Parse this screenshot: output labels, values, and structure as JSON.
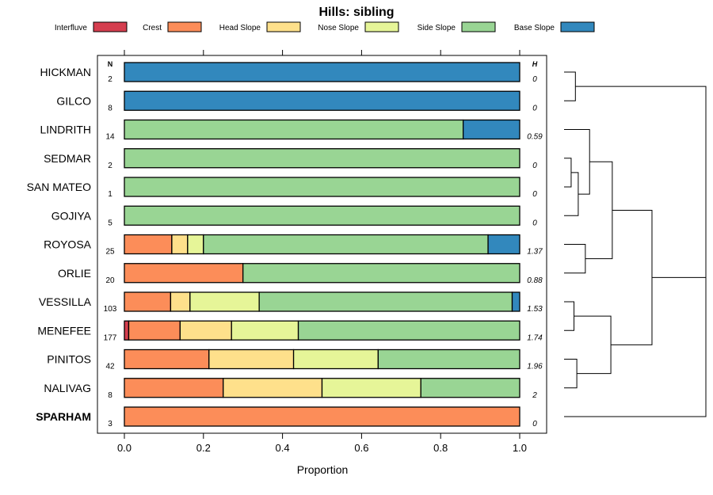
{
  "chart_data": {
    "type": "bar",
    "stacked": true,
    "orientation": "horizontal",
    "title": "Hills: sibling",
    "xlabel": "Proportion",
    "ylabel": "",
    "xlim": [
      0,
      1
    ],
    "x_ticks": [
      "0.0",
      "0.2",
      "0.4",
      "0.6",
      "0.8",
      "1.0"
    ],
    "x_tick_values": [
      0,
      0.2,
      0.4,
      0.6,
      0.8,
      1.0
    ],
    "n_column_header": "N",
    "h_column_header": "H",
    "legend": [
      {
        "name": "Interfluve",
        "color": "#d53e4f"
      },
      {
        "name": "Crest",
        "color": "#fc8d59"
      },
      {
        "name": "Head Slope",
        "color": "#fee08b"
      },
      {
        "name": "Nose Slope",
        "color": "#e6f598"
      },
      {
        "name": "Side Slope",
        "color": "#99d594"
      },
      {
        "name": "Base Slope",
        "color": "#3288bd"
      }
    ],
    "series_order": [
      "Interfluve",
      "Crest",
      "Head Slope",
      "Nose Slope",
      "Side Slope",
      "Base Slope"
    ],
    "rows": [
      {
        "label": "HICKMAN",
        "n": "2",
        "h": "0",
        "bold": false,
        "values": [
          0,
          0,
          0,
          0,
          0,
          1.0
        ]
      },
      {
        "label": "GILCO",
        "n": "8",
        "h": "0",
        "bold": false,
        "values": [
          0,
          0,
          0,
          0,
          0,
          1.0
        ]
      },
      {
        "label": "LINDRITH",
        "n": "14",
        "h": "0.59",
        "bold": false,
        "values": [
          0,
          0,
          0,
          0,
          0.857,
          0.143
        ]
      },
      {
        "label": "SEDMAR",
        "n": "2",
        "h": "0",
        "bold": false,
        "values": [
          0,
          0,
          0,
          0,
          1.0,
          0
        ]
      },
      {
        "label": "SAN MATEO",
        "n": "1",
        "h": "0",
        "bold": false,
        "values": [
          0,
          0,
          0,
          0,
          1.0,
          0
        ]
      },
      {
        "label": "GOJIYA",
        "n": "5",
        "h": "0",
        "bold": false,
        "values": [
          0,
          0,
          0,
          0,
          1.0,
          0
        ]
      },
      {
        "label": "ROYOSA",
        "n": "25",
        "h": "1.37",
        "bold": false,
        "values": [
          0,
          0.12,
          0.04,
          0.04,
          0.72,
          0.08
        ]
      },
      {
        "label": "ORLIE",
        "n": "20",
        "h": "0.88",
        "bold": false,
        "values": [
          0,
          0.3,
          0,
          0,
          0.7,
          0
        ]
      },
      {
        "label": "VESSILLA",
        "n": "103",
        "h": "1.53",
        "bold": false,
        "values": [
          0,
          0.117,
          0.049,
          0.175,
          0.64,
          0.019
        ]
      },
      {
        "label": "MENEFEE",
        "n": "177",
        "h": "1.74",
        "bold": false,
        "values": [
          0.011,
          0.13,
          0.13,
          0.169,
          0.56,
          0
        ]
      },
      {
        "label": "PINITOS",
        "n": "42",
        "h": "1.96",
        "bold": false,
        "values": [
          0,
          0.214,
          0.214,
          0.214,
          0.358,
          0
        ]
      },
      {
        "label": "NALIVAG",
        "n": "8",
        "h": "2",
        "bold": false,
        "values": [
          0,
          0.25,
          0.25,
          0.25,
          0.25,
          0
        ]
      },
      {
        "label": "SPARHAM",
        "n": "3",
        "h": "0",
        "bold": true,
        "values": [
          0,
          1.0,
          0,
          0,
          0,
          0
        ]
      }
    ],
    "dendrogram": {
      "merges": [
        {
          "a": 0,
          "b": 1,
          "height": 0.08
        },
        {
          "a": 3,
          "b": 4,
          "height": 0.05
        },
        {
          "a": -2,
          "b": 5,
          "height": 0.1
        },
        {
          "a": 2,
          "b": -3,
          "height": 0.18
        },
        {
          "a": 6,
          "b": 7,
          "height": 0.15
        },
        {
          "a": -4,
          "b": -5,
          "height": 0.34
        },
        {
          "a": 10,
          "b": 11,
          "height": 0.09
        },
        {
          "a": 8,
          "b": 9,
          "height": 0.07
        },
        {
          "a": -8,
          "b": -7,
          "height": 0.33
        },
        {
          "a": -6,
          "b": -9,
          "height": 0.62
        },
        {
          "a": -1,
          "b": -10,
          "height": 1.0
        },
        {
          "a": -11,
          "b": 12,
          "height": 1.0
        }
      ]
    }
  }
}
